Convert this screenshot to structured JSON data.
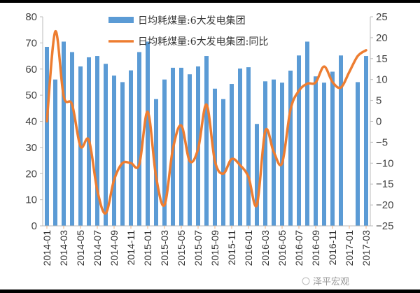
{
  "chart_data": {
    "type": "bar+line",
    "title": "",
    "categories": [
      "2014-01",
      "2014-02",
      "2014-03",
      "2014-04",
      "2014-05",
      "2014-06",
      "2014-07",
      "2014-08",
      "2014-09",
      "2014-10",
      "2014-11",
      "2014-12",
      "2015-01",
      "2015-02",
      "2015-03",
      "2015-04",
      "2015-05",
      "2015-06",
      "2015-07",
      "2015-08",
      "2015-09",
      "2015-10",
      "2015-11",
      "2015-12",
      "2016-01",
      "2016-02",
      "2016-03",
      "2016-04",
      "2016-05",
      "2016-06",
      "2016-07",
      "2016-08",
      "2016-09",
      "2016-10",
      "2016-11",
      "2016-12",
      "2017-01",
      "2017-02",
      "2017-03"
    ],
    "x_tick_labels": [
      "2014-01",
      "2014-03",
      "2014-05",
      "2014-07",
      "2014-09",
      "2014-11",
      "2015-01",
      "2015-03",
      "2015-05",
      "2015-07",
      "2015-09",
      "2015-11",
      "2016-01",
      "2016-03",
      "2016-05",
      "2016-07",
      "2016-09",
      "2016-11",
      "2017-01",
      "2017-03"
    ],
    "series": [
      {
        "name": "日均耗煤量:6大发电集团",
        "type": "bar",
        "axis": "left",
        "color": "#5b9bd5",
        "values": [
          68.5,
          56,
          70.5,
          66.5,
          61,
          64.5,
          65,
          62,
          57.5,
          55,
          59.5,
          66.5,
          70.5,
          48.5,
          56,
          60.5,
          60.5,
          58,
          61,
          65,
          52.5,
          48.5,
          54.3,
          60.2,
          60.7,
          39,
          55.3,
          56,
          54.8,
          59.4,
          65.2,
          70.5,
          57.2,
          54.8,
          59,
          65.2,
          null,
          55,
          65
        ]
      },
      {
        "name": "日均耗煤量:6大发电集团:同比",
        "type": "line",
        "axis": "right",
        "color": "#ed7d31",
        "values": [
          0,
          21.5,
          6,
          4,
          -6,
          -4.5,
          -16.5,
          -22,
          -14,
          -10,
          -10,
          -10.3,
          2.3,
          -13.3,
          -20,
          -6.6,
          -1,
          -9.5,
          -6.6,
          4,
          -9.5,
          -12.5,
          -9,
          -10.5,
          -13.3,
          -20,
          -2.3,
          -7.3,
          -10,
          2.8,
          7.3,
          9,
          9.3,
          13.1,
          9.4,
          8.1,
          11.8,
          15.6,
          17
        ]
      }
    ],
    "y_left": {
      "range": [
        0,
        80
      ],
      "ticks": [
        "0",
        "10",
        "20",
        "30",
        "40",
        "50",
        "60",
        "70",
        "80"
      ]
    },
    "y_right": {
      "range": [
        -25,
        25
      ],
      "ticks": [
        "-25",
        "-20",
        "-15",
        "-10",
        "-5",
        "0",
        "5",
        "10",
        "15",
        "20",
        "25"
      ]
    },
    "legend_position": "top-center",
    "grid": false
  },
  "watermark": "泽平宏观"
}
